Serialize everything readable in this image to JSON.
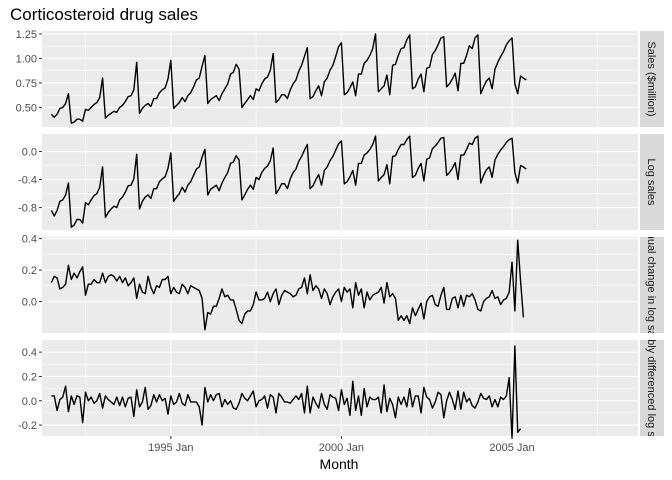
{
  "chart_data": {
    "type": "line",
    "title": "Corticosteroid drug sales",
    "xlabel": "Month",
    "x_ticks": [
      "1995 Jan",
      "2000 Jan",
      "2005 Jan"
    ],
    "x_start": "1991 Jul",
    "x_end": "2008 Jun",
    "panels": [
      {
        "strip": "Sales ($million)",
        "ylim": [
          0.3,
          1.28
        ],
        "y_ticks": [
          {
            "v": 0.5,
            "label": "0.50"
          },
          {
            "v": 0.75,
            "label": "0.75"
          },
          {
            "v": 1.0,
            "label": "1.00"
          },
          {
            "v": 1.25,
            "label": "1.25"
          }
        ],
        "values": [
          0.43,
          0.4,
          0.43,
          0.49,
          0.5,
          0.54,
          0.64,
          0.34,
          0.35,
          0.38,
          0.38,
          0.36,
          0.48,
          0.47,
          0.5,
          0.53,
          0.55,
          0.6,
          0.8,
          0.39,
          0.42,
          0.44,
          0.46,
          0.45,
          0.5,
          0.52,
          0.56,
          0.61,
          0.62,
          0.68,
          0.96,
          0.44,
          0.49,
          0.52,
          0.54,
          0.51,
          0.59,
          0.59,
          0.65,
          0.68,
          0.7,
          0.79,
          0.98,
          0.49,
          0.52,
          0.55,
          0.6,
          0.56,
          0.62,
          0.65,
          0.71,
          0.78,
          0.8,
          0.92,
          1.03,
          0.54,
          0.58,
          0.6,
          0.62,
          0.57,
          0.64,
          0.69,
          0.74,
          0.84,
          0.86,
          0.94,
          0.89,
          0.5,
          0.54,
          0.58,
          0.62,
          0.58,
          0.69,
          0.67,
          0.74,
          0.79,
          0.81,
          0.88,
          1.05,
          0.55,
          0.58,
          0.63,
          0.63,
          0.59,
          0.68,
          0.74,
          0.78,
          0.87,
          0.93,
          1.02,
          1.11,
          0.59,
          0.61,
          0.67,
          0.72,
          0.62,
          0.76,
          0.8,
          0.88,
          0.93,
          1.02,
          1.12,
          1.16,
          0.63,
          0.65,
          0.7,
          0.76,
          0.62,
          0.84,
          0.84,
          0.95,
          0.98,
          1.03,
          1.1,
          1.25,
          0.66,
          0.69,
          0.72,
          0.83,
          0.63,
          0.93,
          0.94,
          1.03,
          1.1,
          1.11,
          1.19,
          1.24,
          0.69,
          0.71,
          0.79,
          0.84,
          0.66,
          0.9,
          0.91,
          1.04,
          1.08,
          1.14,
          1.21,
          1.22,
          0.71,
          0.74,
          0.79,
          0.85,
          0.67,
          0.95,
          0.95,
          1.03,
          1.13,
          1.1,
          1.21,
          1.24,
          0.64,
          0.71,
          0.77,
          0.8,
          0.69,
          0.89,
          0.96,
          1.02,
          1.07,
          1.14,
          1.18,
          1.21,
          0.74,
          0.64,
          0.82,
          0.8,
          0.78
        ]
      },
      {
        "strip": "Log sales",
        "ylim": [
          -1.12,
          0.25
        ],
        "y_ticks": [
          {
            "v": -0.8,
            "label": "-0.8"
          },
          {
            "v": -0.4,
            "label": "-0.4"
          },
          {
            "v": 0.0,
            "label": "0.0"
          }
        ],
        "values": [
          -0.84,
          -0.92,
          -0.84,
          -0.71,
          -0.69,
          -0.62,
          -0.45,
          -1.08,
          -1.05,
          -0.97,
          -0.97,
          -1.02,
          -0.73,
          -0.76,
          -0.69,
          -0.63,
          -0.6,
          -0.51,
          -0.22,
          -0.94,
          -0.87,
          -0.82,
          -0.78,
          -0.8,
          -0.69,
          -0.65,
          -0.58,
          -0.49,
          -0.48,
          -0.39,
          -0.04,
          -0.82,
          -0.71,
          -0.65,
          -0.62,
          -0.67,
          -0.53,
          -0.53,
          -0.43,
          -0.39,
          -0.36,
          -0.24,
          -0.02,
          -0.71,
          -0.65,
          -0.6,
          -0.51,
          -0.58,
          -0.48,
          -0.43,
          -0.34,
          -0.25,
          -0.22,
          -0.08,
          0.03,
          -0.62,
          -0.54,
          -0.51,
          -0.48,
          -0.56,
          -0.45,
          -0.37,
          -0.3,
          -0.17,
          -0.15,
          -0.06,
          -0.12,
          -0.69,
          -0.62,
          -0.54,
          -0.48,
          -0.54,
          -0.37,
          -0.4,
          -0.3,
          -0.24,
          -0.21,
          -0.13,
          0.05,
          -0.6,
          -0.54,
          -0.46,
          -0.46,
          -0.53,
          -0.39,
          -0.3,
          -0.25,
          -0.14,
          -0.07,
          0.02,
          0.1,
          -0.53,
          -0.49,
          -0.4,
          -0.33,
          -0.48,
          -0.27,
          -0.22,
          -0.13,
          -0.07,
          0.02,
          0.11,
          0.15,
          -0.46,
          -0.43,
          -0.36,
          -0.27,
          -0.48,
          -0.17,
          -0.17,
          -0.05,
          -0.02,
          0.03,
          0.1,
          0.22,
          -0.42,
          -0.37,
          -0.33,
          -0.19,
          -0.46,
          -0.07,
          -0.06,
          0.03,
          0.1,
          0.1,
          0.17,
          0.22,
          -0.37,
          -0.34,
          -0.24,
          -0.17,
          -0.42,
          -0.11,
          -0.09,
          0.04,
          0.08,
          0.13,
          0.19,
          0.2,
          -0.34,
          -0.3,
          -0.24,
          -0.16,
          -0.4,
          -0.05,
          -0.05,
          0.03,
          0.12,
          0.1,
          0.19,
          0.22,
          -0.45,
          -0.34,
          -0.26,
          -0.22,
          -0.37,
          -0.12,
          -0.04,
          0.02,
          0.07,
          0.13,
          0.17,
          0.19,
          -0.3,
          -0.45,
          -0.2,
          -0.22,
          -0.25
        ]
      },
      {
        "strip": "Annual change in log sales",
        "ylim": [
          -0.2,
          0.41
        ],
        "y_ticks": [
          {
            "v": 0.0,
            "label": "0.0"
          },
          {
            "v": 0.2,
            "label": "0.2"
          },
          {
            "v": 0.4,
            "label": "0.4"
          }
        ],
        "values": [
          0.12,
          0.16,
          0.15,
          0.08,
          0.09,
          0.11,
          0.23,
          0.14,
          0.18,
          0.15,
          0.19,
          0.22,
          0.04,
          0.11,
          0.11,
          0.14,
          0.12,
          0.12,
          0.18,
          0.12,
          0.16,
          0.17,
          0.16,
          0.13,
          0.16,
          0.12,
          0.15,
          0.1,
          0.12,
          0.15,
          0.02,
          0.11,
          0.06,
          0.05,
          0.16,
          0.09,
          0.05,
          0.1,
          0.09,
          0.14,
          0.14,
          0.16,
          0.05,
          0.09,
          0.06,
          0.05,
          0.11,
          0.09,
          0.05,
          0.1,
          0.09,
          0.08,
          0.07,
          0.02,
          -0.18,
          -0.07,
          -0.08,
          -0.03,
          -0.03,
          0.02,
          0.08,
          0.03,
          0.04,
          0.01,
          0.01,
          -0.05,
          -0.12,
          -0.14,
          -0.08,
          -0.06,
          -0.06,
          -0.02,
          0.06,
          0.01,
          0.01,
          0.02,
          0.06,
          0.0,
          0.05,
          0.08,
          -0.02,
          0.04,
          0.07,
          0.06,
          0.05,
          0.03,
          0.04,
          0.08,
          0.09,
          0.15,
          0.05,
          0.17,
          0.07,
          0.1,
          0.08,
          0.02,
          0.08,
          0.05,
          -0.02,
          0.03,
          0.06,
          0.08,
          0.0,
          0.09,
          0.06,
          0.08,
          -0.04,
          0.12,
          0.04,
          0.08,
          -0.04,
          0.06,
          0.01,
          0.04,
          0.05,
          0.06,
          0.09,
          -0.01,
          0.12,
          0.03,
          0.05,
          0.02,
          -0.12,
          -0.09,
          -0.12,
          -0.09,
          -0.14,
          -0.04,
          -0.09,
          -0.05,
          -0.01,
          -0.11,
          0.0,
          0.03,
          0.04,
          -0.02,
          -0.03,
          0.04,
          0.09,
          -0.05,
          -0.05,
          0.02,
          0.03,
          -0.04,
          0.04,
          -0.03,
          0.04,
          0.03,
          0.05,
          0.01,
          -0.05,
          -0.06,
          0.0,
          0.02,
          0.03,
          0.07,
          0.02,
          0.03,
          -0.02,
          0.01,
          0.02,
          0.06,
          0.25,
          -0.06,
          0.39,
          0.13,
          -0.1
        ]
      },
      {
        "strip": "Doubly differenced log sales",
        "ylim": [
          -0.29,
          0.5
        ],
        "y_ticks": [
          {
            "v": -0.2,
            "label": "-0.2"
          },
          {
            "v": 0.0,
            "label": "0.0"
          },
          {
            "v": 0.2,
            "label": "0.2"
          },
          {
            "v": 0.4,
            "label": "0.4"
          }
        ],
        "values": [
          0.04,
          0.04,
          -0.08,
          0.01,
          0.03,
          0.12,
          -0.09,
          0.04,
          -0.03,
          0.04,
          0.03,
          -0.18,
          0.07,
          0.0,
          0.03,
          -0.02,
          0.0,
          0.06,
          -0.06,
          0.04,
          0.01,
          -0.01,
          -0.03,
          0.03,
          -0.04,
          0.03,
          -0.05,
          0.02,
          0.03,
          -0.13,
          0.09,
          -0.05,
          -0.01,
          0.11,
          -0.07,
          -0.04,
          0.05,
          -0.01,
          0.05,
          0.0,
          0.02,
          -0.11,
          0.04,
          -0.03,
          -0.01,
          0.06,
          -0.02,
          -0.04,
          0.05,
          -0.01,
          -0.01,
          -0.01,
          -0.05,
          -0.2,
          0.11,
          -0.01,
          0.05,
          0.0,
          0.05,
          0.06,
          -0.05,
          0.01,
          -0.03,
          0.0,
          -0.06,
          -0.07,
          -0.02,
          0.06,
          0.02,
          0.0,
          0.04,
          0.08,
          -0.05,
          0.0,
          0.01,
          0.04,
          -0.06,
          0.05,
          0.03,
          -0.1,
          0.06,
          0.03,
          -0.01,
          -0.01,
          -0.02,
          0.01,
          0.04,
          0.01,
          0.06,
          -0.1,
          0.12,
          -0.1,
          0.03,
          -0.02,
          -0.06,
          0.06,
          -0.03,
          -0.07,
          0.05,
          0.03,
          0.02,
          -0.08,
          0.09,
          -0.03,
          0.02,
          -0.12,
          0.16,
          -0.08,
          0.04,
          -0.12,
          0.1,
          -0.05,
          0.03,
          0.01,
          0.01,
          0.03,
          -0.1,
          0.13,
          -0.09,
          0.02,
          -0.03,
          -0.14,
          0.03,
          -0.03,
          0.03,
          -0.05,
          0.1,
          -0.05,
          0.04,
          0.04,
          -0.1,
          0.11,
          0.03,
          0.01,
          -0.06,
          -0.01,
          0.07,
          0.05,
          -0.14,
          0.0,
          0.07,
          0.01,
          -0.07,
          0.08,
          -0.07,
          0.07,
          -0.01,
          0.02,
          -0.04,
          -0.06,
          -0.01,
          0.06,
          0.02,
          0.01,
          0.04,
          -0.05,
          0.01,
          -0.05,
          0.03,
          0.01,
          0.04,
          0.19,
          -0.31,
          0.45,
          -0.26,
          -0.23
        ]
      }
    ]
  }
}
